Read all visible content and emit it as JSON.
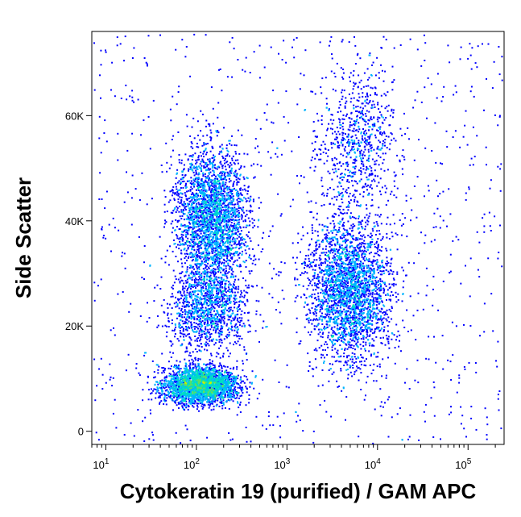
{
  "chart_data": {
    "type": "scatter",
    "subtype": "density-dot-plot",
    "title": "",
    "xlabel": "Cytokeratin 19 (purified) / GAM APC",
    "ylabel": "Side Scatter",
    "x_scale": "log",
    "xlim": [
      7,
      250000
    ],
    "ylim": [
      -2500,
      76000
    ],
    "x_ticks": [
      {
        "value": 10,
        "base": "10",
        "exp": "1"
      },
      {
        "value": 100,
        "base": "10",
        "exp": "2"
      },
      {
        "value": 1000,
        "base": "10",
        "exp": "3"
      },
      {
        "value": 10000,
        "base": "10",
        "exp": "4"
      },
      {
        "value": 100000,
        "base": "10",
        "exp": "5"
      }
    ],
    "y_ticks": [
      {
        "value": 0,
        "label": "0"
      },
      {
        "value": 20000,
        "label": "20K"
      },
      {
        "value": 40000,
        "label": "40K"
      },
      {
        "value": 60000,
        "label": "60K"
      }
    ],
    "populations": [
      {
        "center_x": 150,
        "center_y": 41000,
        "spread_log_x": 0.28,
        "spread_y": 9000,
        "density": "high"
      },
      {
        "center_x": 110,
        "center_y": 9000,
        "spread_log_x": 0.3,
        "spread_y": 2500,
        "density": "high"
      },
      {
        "center_x": 5000,
        "center_y": 27000,
        "spread_log_x": 0.32,
        "spread_y": 9500,
        "density": "high"
      },
      {
        "center_x": 6000,
        "center_y": 55000,
        "spread_log_x": 0.3,
        "spread_y": 10000,
        "density": "low"
      },
      {
        "center_x": 130,
        "center_y": 24000,
        "spread_log_x": 0.3,
        "spread_y": 6000,
        "density": "medium"
      }
    ],
    "color_scale": [
      "#0000ff",
      "#00b4ff",
      "#00e0c0",
      "#60e060",
      "#c8f000",
      "#ffff00",
      "#ffa000",
      "#ff0000"
    ],
    "grid": false,
    "legend": "none"
  }
}
